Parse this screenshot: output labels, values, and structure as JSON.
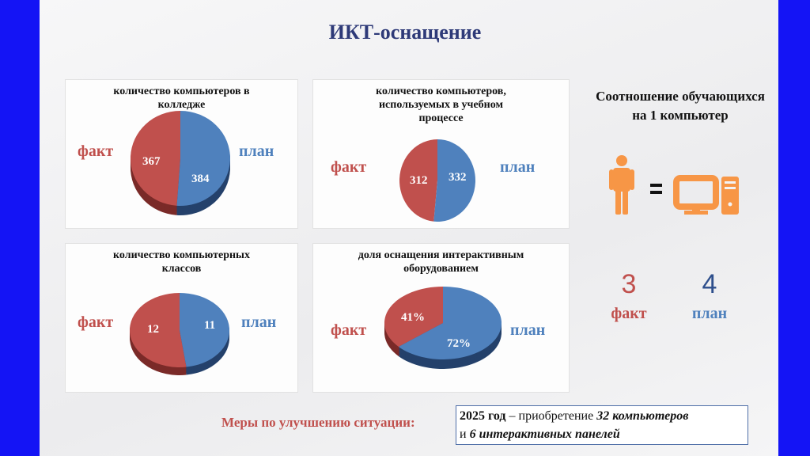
{
  "title": "ИКТ-оснащение",
  "labels": {
    "fact": "факт",
    "plan": "план"
  },
  "colors": {
    "fact": "#c0504d",
    "plan": "#4f81bd",
    "icon": "#f79646",
    "frame": "#1414f5"
  },
  "chart_data": [
    {
      "type": "pie",
      "title": "количество компьютеров в колледже",
      "categories": [
        "факт",
        "план"
      ],
      "values": [
        367,
        384
      ],
      "labels": [
        "367",
        "384"
      ]
    },
    {
      "type": "pie",
      "title": "количество компьютеров, используемых в учебном процессе",
      "categories": [
        "факт",
        "план"
      ],
      "values": [
        312,
        332
      ],
      "labels": [
        "312",
        "332"
      ]
    },
    {
      "type": "pie",
      "title": "количество компьютерных классов",
      "categories": [
        "факт",
        "план"
      ],
      "values": [
        12,
        11
      ],
      "labels": [
        "12",
        "11"
      ]
    },
    {
      "type": "pie",
      "title": "доля оснащения интерактивным оборудованием",
      "categories": [
        "факт",
        "план"
      ],
      "values": [
        41,
        72
      ],
      "labels": [
        "41%",
        "72%"
      ]
    }
  ],
  "ratio": {
    "title": "Соотношение обучающихся на 1 компьютер",
    "equals": "=",
    "fact_value": "3",
    "plan_value": "4"
  },
  "measures": {
    "label": "Меры по улучшению ситуации:",
    "year": "2025 год",
    "dash": " – приобретение ",
    "computers": "32 компьютеров",
    "and": "и ",
    "panels": "6 интерактивных панелей"
  }
}
